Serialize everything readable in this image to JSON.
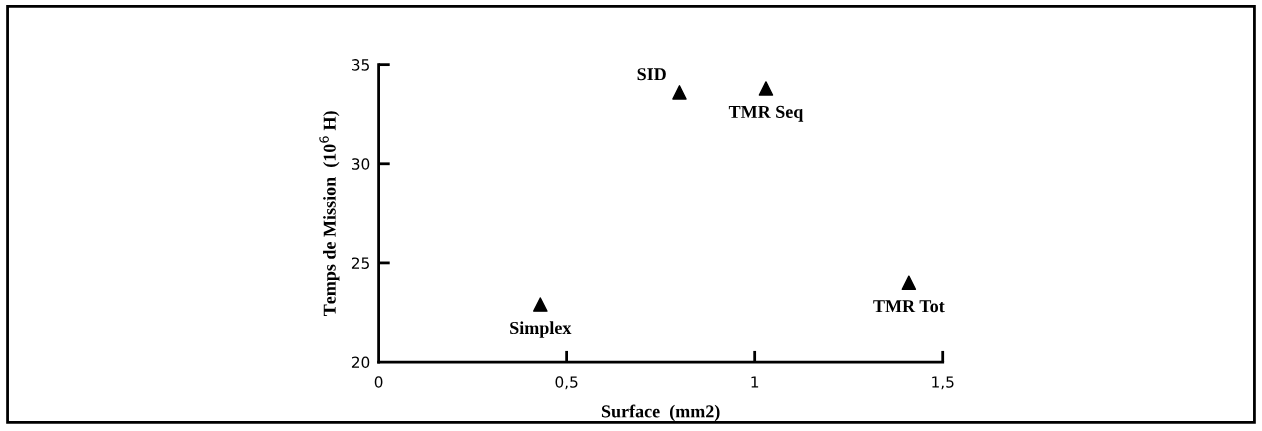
{
  "chart_data": {
    "type": "scatter",
    "xlabel": "Surface  (mm2)",
    "ylabel": "Temps de Mission  (10$^{6}$ H)",
    "x": [
      0.43,
      0.8,
      1.03,
      1.41
    ],
    "series": [
      {
        "color": "#000000",
        "values": [
          22.9,
          33.6,
          33.8,
          24.0
        ]
      }
    ],
    "marker": "triangle",
    "grid": false,
    "legend": false,
    "xlim": [
      0,
      1.5
    ],
    "xticks": [
      0,
      {
        "value": 0.5,
        "label": "0,5"
      },
      1,
      {
        "value": 1.5,
        "label": "1,5"
      }
    ],
    "ylim": [
      20,
      35
    ],
    "yticks": [
      20,
      25,
      30,
      35
    ],
    "annotations": [
      {
        "text": "Simplex",
        "x": 0.43,
        "y": 22.9
      },
      {
        "text": "SID",
        "x": 0.8,
        "y": 33.6
      },
      {
        "text": "TMR Seq",
        "x": 1.03,
        "y": 33.8
      },
      {
        "text": "TMR Tot",
        "x": 1.41,
        "y": 24.0
      }
    ]
  }
}
